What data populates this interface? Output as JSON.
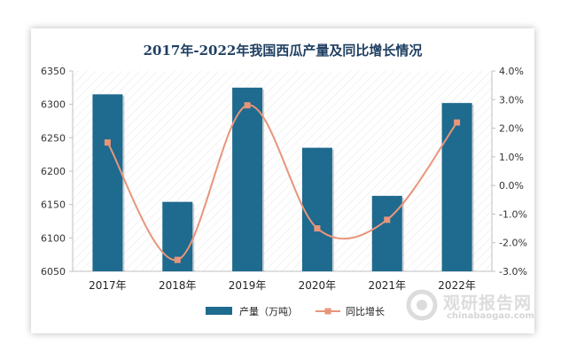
{
  "chart_data": {
    "type": "bar",
    "title": "2017年-2022年我国西瓜产量及同比增长情况",
    "categories": [
      "2017年",
      "2018年",
      "2019年",
      "2020年",
      "2021年",
      "2022年"
    ],
    "series": [
      {
        "name": "产量（万吨）",
        "type": "bar",
        "axis": "left",
        "values": [
          6315,
          6154,
          6325,
          6235,
          6163,
          6302
        ],
        "color": "#1f6a8f"
      },
      {
        "name": "同比增长",
        "type": "line",
        "axis": "right",
        "values": [
          0.015,
          -0.026,
          0.028,
          -0.015,
          -0.012,
          0.022
        ],
        "color": "#e8957a"
      }
    ],
    "ylim": [
      6050,
      6350
    ],
    "yticks": [
      "6050",
      "6100",
      "6150",
      "6200",
      "6250",
      "6300",
      "6350"
    ],
    "y2lim": [
      -0.03,
      0.04
    ],
    "y2ticks": [
      "-3.0%",
      "-2.0%",
      "-1.0%",
      "0.0%",
      "1.0%",
      "2.0%",
      "3.0%",
      "4.0%"
    ],
    "grid": false,
    "legend_position": "bottom"
  },
  "watermark": {
    "cn": "观研报告网",
    "en": "chinabaogao.com"
  }
}
